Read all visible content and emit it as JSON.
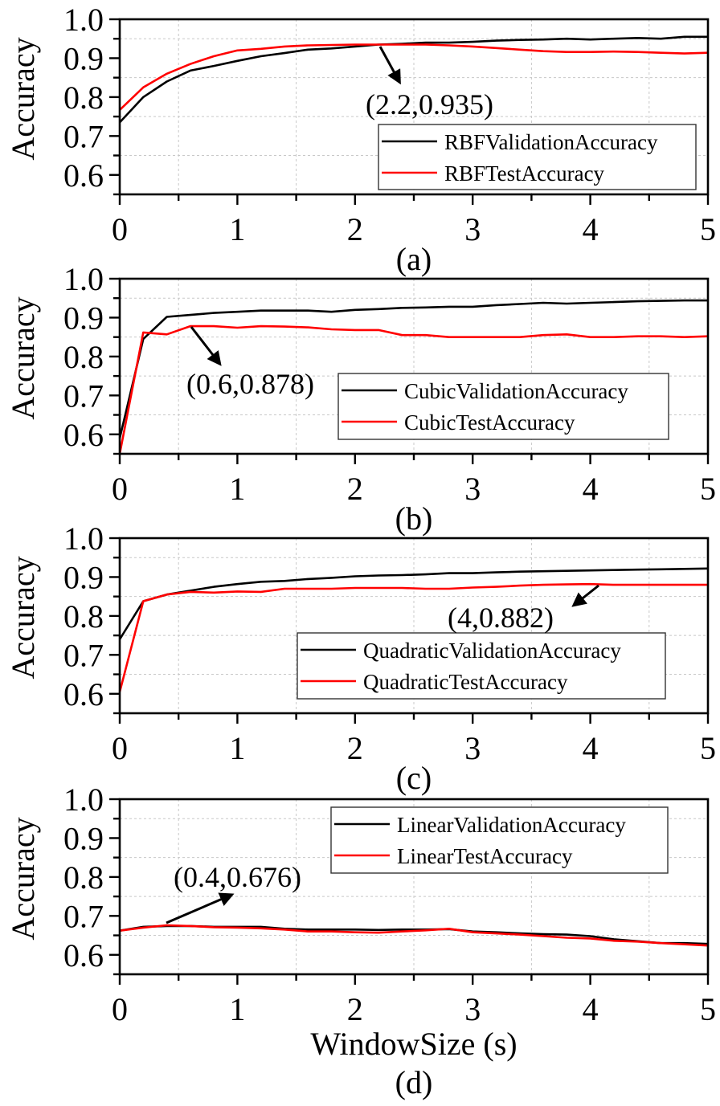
{
  "chart_data": [
    {
      "type": "line",
      "panel_label": "(a)",
      "ylabel": "Accuracy",
      "xlabel": "",
      "xlim": [
        0,
        5
      ],
      "ylim": [
        0.55,
        1.0
      ],
      "xticks": [
        0,
        1,
        2,
        3,
        4,
        5
      ],
      "yticks": [
        "0.6",
        "0.7",
        "0.8",
        "0.9",
        "1.0"
      ],
      "grid": true,
      "legend_position": "bottom-right",
      "x": [
        0,
        0.2,
        0.4,
        0.6,
        0.8,
        1,
        1.2,
        1.4,
        1.6,
        1.8,
        2,
        2.2,
        2.4,
        2.6,
        2.8,
        3,
        3.2,
        3.4,
        3.6,
        3.8,
        4,
        4.2,
        4.4,
        4.6,
        4.8,
        5
      ],
      "series": [
        {
          "name": "RBFValidationAccuracy",
          "color": "#000000",
          "values": [
            0.735,
            0.8,
            0.84,
            0.868,
            0.88,
            0.893,
            0.905,
            0.913,
            0.922,
            0.925,
            0.93,
            0.935,
            0.937,
            0.94,
            0.94,
            0.942,
            0.945,
            0.947,
            0.948,
            0.95,
            0.948,
            0.95,
            0.952,
            0.95,
            0.955,
            0.955
          ]
        },
        {
          "name": "RBFTestAccuracy",
          "color": "#ff0000",
          "values": [
            0.767,
            0.825,
            0.86,
            0.885,
            0.905,
            0.92,
            0.924,
            0.93,
            0.933,
            0.934,
            0.935,
            0.935,
            0.935,
            0.935,
            0.933,
            0.93,
            0.926,
            0.922,
            0.918,
            0.916,
            0.916,
            0.917,
            0.916,
            0.914,
            0.912,
            0.914
          ]
        }
      ],
      "annotation": {
        "text": "(2.2,0.935)",
        "point": [
          2.2,
          0.935
        ]
      }
    },
    {
      "type": "line",
      "panel_label": "(b)",
      "ylabel": "Accuracy",
      "xlabel": "",
      "xlim": [
        0,
        5
      ],
      "ylim": [
        0.55,
        1.0
      ],
      "xticks": [
        0,
        1,
        2,
        3,
        4,
        5
      ],
      "yticks": [
        "0.6",
        "0.7",
        "0.8",
        "0.9",
        "1.0"
      ],
      "grid": true,
      "legend_position": "bottom-right",
      "x": [
        0,
        0.2,
        0.4,
        0.6,
        0.8,
        1,
        1.2,
        1.4,
        1.6,
        1.8,
        2,
        2.2,
        2.4,
        2.6,
        2.8,
        3,
        3.2,
        3.4,
        3.6,
        3.8,
        4,
        4.2,
        4.4,
        4.6,
        4.8,
        5
      ],
      "series": [
        {
          "name": "CubicValidationAccuracy",
          "color": "#000000",
          "values": [
            0.59,
            0.845,
            0.902,
            0.907,
            0.912,
            0.915,
            0.918,
            0.918,
            0.918,
            0.915,
            0.92,
            0.922,
            0.925,
            0.926,
            0.928,
            0.928,
            0.932,
            0.935,
            0.938,
            0.936,
            0.938,
            0.94,
            0.942,
            0.943,
            0.944,
            0.944
          ]
        },
        {
          "name": "CubicTestAccuracy",
          "color": "#ff0000",
          "values": [
            0.55,
            0.862,
            0.857,
            0.878,
            0.878,
            0.874,
            0.878,
            0.877,
            0.875,
            0.87,
            0.868,
            0.868,
            0.855,
            0.855,
            0.85,
            0.85,
            0.85,
            0.85,
            0.855,
            0.857,
            0.85,
            0.85,
            0.852,
            0.852,
            0.85,
            0.852
          ]
        }
      ],
      "annotation": {
        "text": "(0.6,0.878)",
        "point": [
          0.6,
          0.878
        ]
      }
    },
    {
      "type": "line",
      "panel_label": "(c)",
      "ylabel": "Accuracy",
      "xlabel": "",
      "xlim": [
        0,
        5
      ],
      "ylim": [
        0.55,
        1.0
      ],
      "xticks": [
        0,
        1,
        2,
        3,
        4,
        5
      ],
      "yticks": [
        "0.6",
        "0.7",
        "0.8",
        "0.9",
        "1.0"
      ],
      "grid": true,
      "legend_position": "bottom-right",
      "x": [
        0,
        0.2,
        0.4,
        0.6,
        0.8,
        1,
        1.2,
        1.4,
        1.6,
        1.8,
        2,
        2.2,
        2.4,
        2.6,
        2.8,
        3,
        3.2,
        3.4,
        3.6,
        3.8,
        4,
        4.2,
        4.4,
        4.6,
        4.8,
        5
      ],
      "series": [
        {
          "name": "QuadraticValidationAccuracy",
          "color": "#000000",
          "values": [
            0.74,
            0.838,
            0.855,
            0.865,
            0.875,
            0.882,
            0.888,
            0.89,
            0.895,
            0.898,
            0.902,
            0.904,
            0.905,
            0.907,
            0.91,
            0.91,
            0.912,
            0.914,
            0.915,
            0.916,
            0.917,
            0.918,
            0.919,
            0.92,
            0.921,
            0.922
          ]
        },
        {
          "name": "QuadraticTestAccuracy",
          "color": "#ff0000",
          "values": [
            0.605,
            0.838,
            0.855,
            0.862,
            0.86,
            0.863,
            0.862,
            0.87,
            0.87,
            0.87,
            0.872,
            0.872,
            0.872,
            0.87,
            0.87,
            0.873,
            0.875,
            0.878,
            0.88,
            0.881,
            0.882,
            0.88,
            0.88,
            0.88,
            0.88,
            0.88
          ]
        }
      ],
      "annotation": {
        "text": "(4,0.882)",
        "point": [
          4,
          0.882
        ]
      }
    },
    {
      "type": "line",
      "panel_label": "(d)",
      "ylabel": "Accuracy",
      "xlabel": "WindowSize (s)",
      "xlim": [
        0,
        5
      ],
      "ylim": [
        0.55,
        1.0
      ],
      "xticks": [
        0,
        1,
        2,
        3,
        4,
        5
      ],
      "yticks": [
        "0.6",
        "0.7",
        "0.8",
        "0.9",
        "1.0"
      ],
      "grid": true,
      "legend_position": "top-right",
      "x": [
        0,
        0.2,
        0.4,
        0.6,
        0.8,
        1,
        1.2,
        1.4,
        1.6,
        1.8,
        2,
        2.2,
        2.4,
        2.6,
        2.8,
        3,
        3.2,
        3.4,
        3.6,
        3.8,
        4,
        4.2,
        4.4,
        4.6,
        4.8,
        5
      ],
      "series": [
        {
          "name": "LinearValidationAccuracy",
          "color": "#000000",
          "values": [
            0.662,
            0.672,
            0.674,
            0.674,
            0.672,
            0.672,
            0.672,
            0.667,
            0.665,
            0.665,
            0.665,
            0.664,
            0.665,
            0.665,
            0.666,
            0.66,
            0.658,
            0.655,
            0.653,
            0.652,
            0.648,
            0.64,
            0.635,
            0.63,
            0.63,
            0.628
          ]
        },
        {
          "name": "LinearTestAccuracy",
          "color": "#ff0000",
          "values": [
            0.662,
            0.67,
            0.676,
            0.674,
            0.671,
            0.67,
            0.668,
            0.665,
            0.66,
            0.66,
            0.658,
            0.657,
            0.66,
            0.663,
            0.667,
            0.658,
            0.655,
            0.652,
            0.648,
            0.644,
            0.642,
            0.636,
            0.634,
            0.63,
            0.627,
            0.624
          ]
        }
      ],
      "annotation": {
        "text": "(0.4,0.676)",
        "point": [
          0.4,
          0.676
        ]
      }
    }
  ]
}
